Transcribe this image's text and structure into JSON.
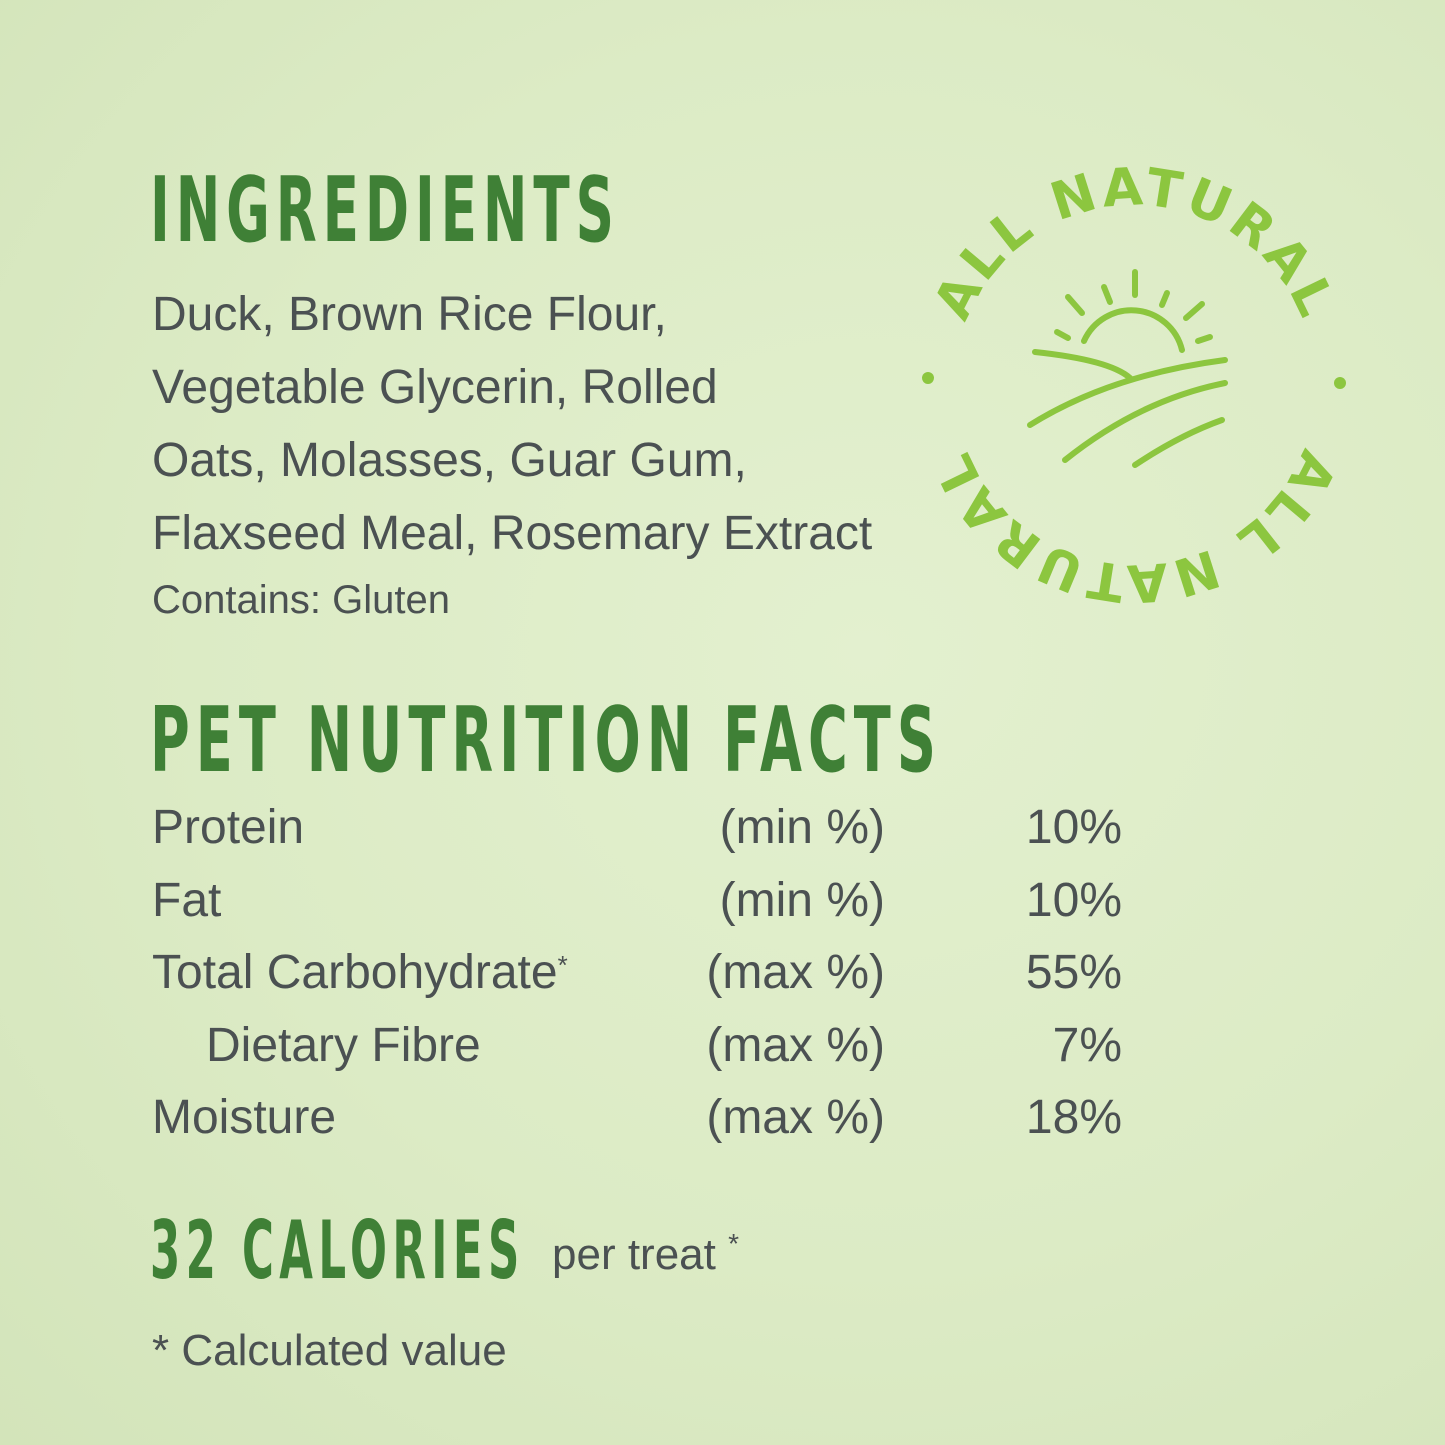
{
  "colors": {
    "background": "#dcebc5",
    "heading": "#3f8036",
    "text": "#4b5152",
    "badge": "#8cc63f"
  },
  "ingredients": {
    "title": "INGREDIENTS",
    "lines": [
      "Duck, Brown Rice Flour,",
      "Vegetable Glycerin, Rolled",
      "Oats, Molasses, Guar Gum,",
      "Flaxseed Meal, Rosemary Extract"
    ],
    "contains": "Contains: Gluten"
  },
  "badge": {
    "text": "ALL NATURAL",
    "icon": "sun-over-field-icon"
  },
  "nutrition": {
    "title": "PET NUTRITION FACTS",
    "rows": [
      {
        "name": "Protein",
        "mark": "",
        "unit": "(min %)",
        "value": "10%"
      },
      {
        "name": "Fat",
        "mark": "",
        "unit": "(min %)",
        "value": "10%"
      },
      {
        "name": "Total Carbohydrate",
        "mark": "*",
        "unit": "(max %)",
        "value": "55%"
      },
      {
        "name": "Dietary Fibre",
        "mark": "",
        "unit": "(max %)",
        "value": "7%"
      },
      {
        "name": "Moisture",
        "mark": "",
        "unit": "(max %)",
        "value": "18%"
      }
    ]
  },
  "calories": {
    "title": "32 CALORIES",
    "suffix": "per treat",
    "mark": "*"
  },
  "footnote": "* Calculated value"
}
